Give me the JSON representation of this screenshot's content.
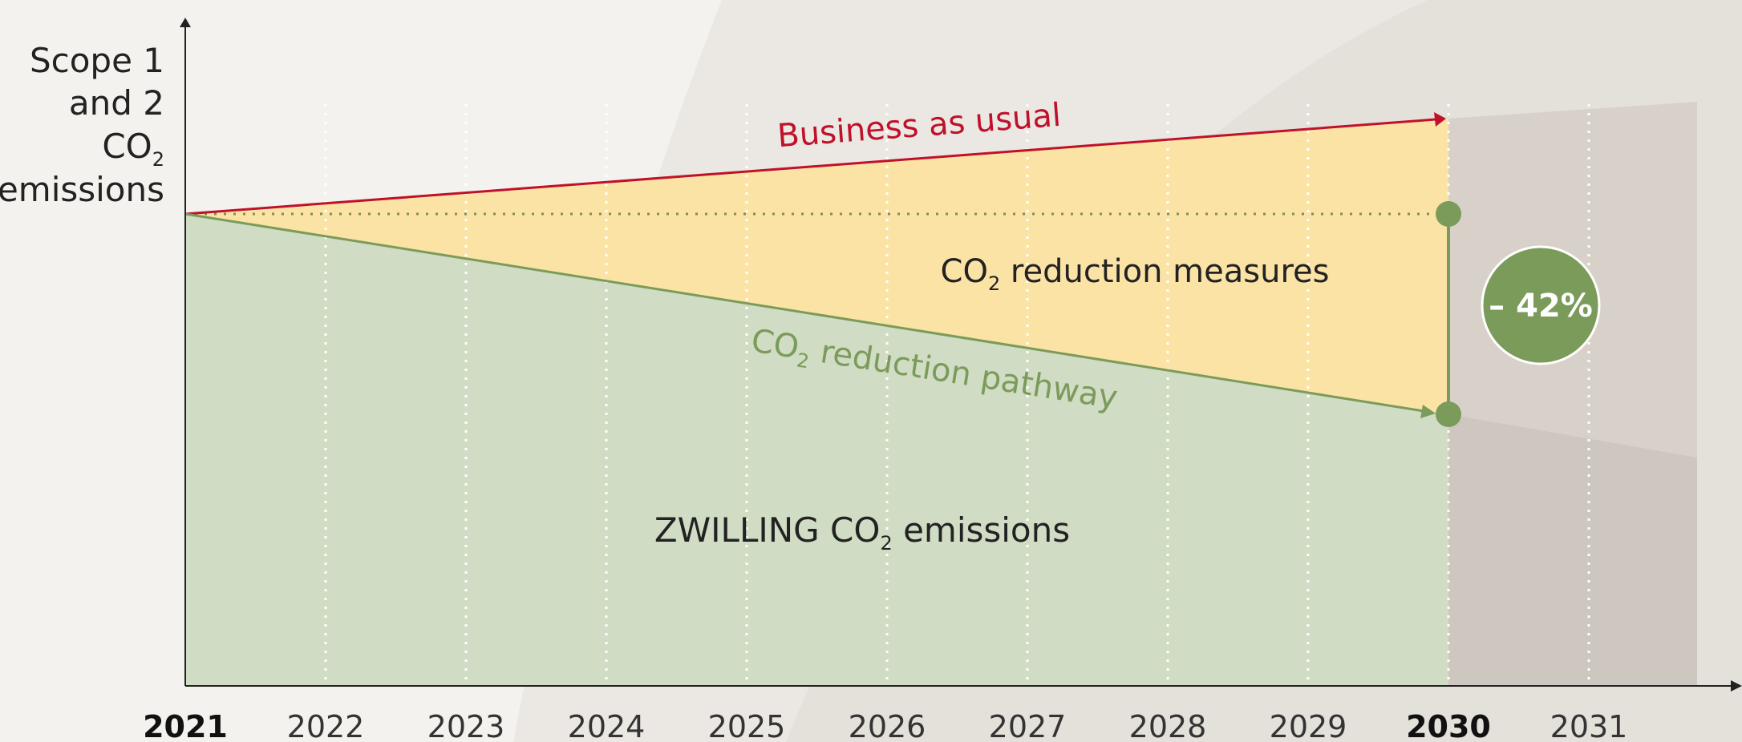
{
  "y_axis_label": [
    "Scope 1",
    "and 2",
    {
      "main": "CO",
      "sub": "2"
    },
    "emissions"
  ],
  "years": [
    "2021",
    "2022",
    "2023",
    "2024",
    "2025",
    "2026",
    "2027",
    "2028",
    "2029",
    "2030",
    "2031"
  ],
  "business_label": "Business as usual",
  "measures_label": {
    "main": "CO",
    "sub": "2",
    "rest": " reduction measures"
  },
  "pathway_label": {
    "main": "CO",
    "sub": "2",
    "rest": " reduction pathway"
  },
  "emissions_label": {
    "lead": "ZWILLING CO",
    "sub": "2",
    "rest": " emissions"
  },
  "reduction_badge": "– 42%"
}
